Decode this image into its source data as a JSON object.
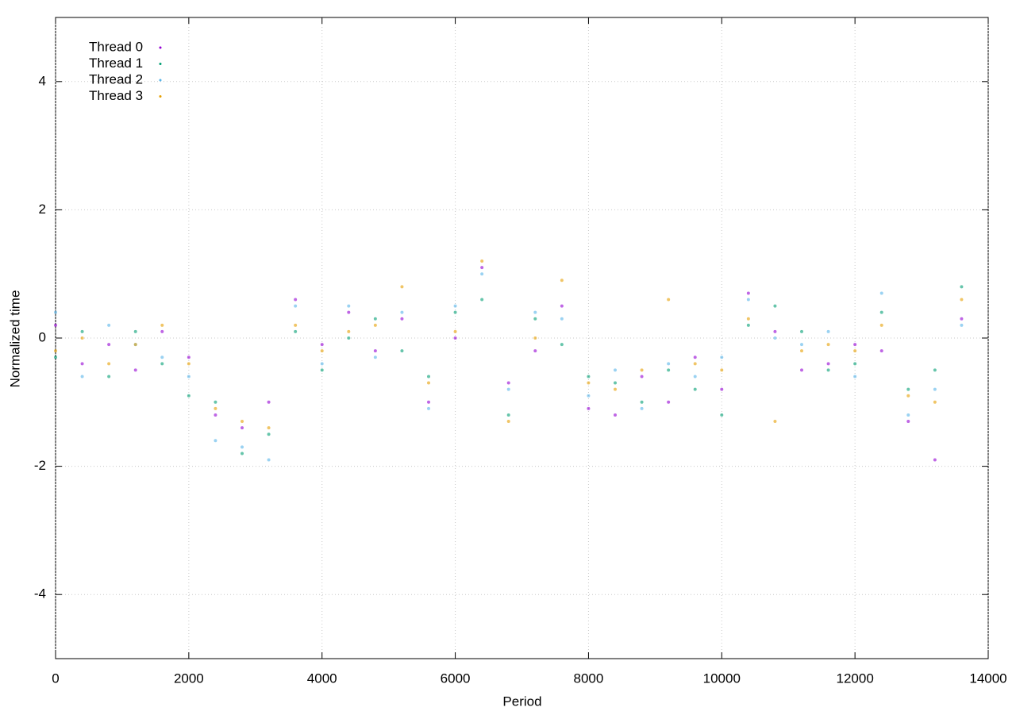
{
  "chart_data": {
    "type": "scatter",
    "xlabel": "Period",
    "ylabel": "Normalized time",
    "xlim": [
      0,
      14000
    ],
    "ylim": [
      -5,
      5
    ],
    "xticks": [
      0,
      2000,
      4000,
      6000,
      8000,
      10000,
      12000,
      14000
    ],
    "yticks": [
      -4,
      -2,
      0,
      2,
      4
    ],
    "grid": true,
    "legend": "top-left",
    "x": [
      0,
      400,
      800,
      1200,
      1600,
      2000,
      2400,
      2800,
      3200,
      3600,
      4000,
      4400,
      4800,
      5200,
      5600,
      6000,
      6400,
      6800,
      7200,
      7600,
      8000,
      8400,
      8800,
      9200,
      9600,
      10000,
      10400,
      10800,
      11200,
      11600,
      12000,
      12400,
      12800,
      13200,
      13600
    ],
    "series": [
      {
        "name": "Thread 0",
        "color": "#9400d3",
        "values": [
          0.2,
          -0.4,
          -0.1,
          -0.5,
          0.1,
          -0.3,
          -1.2,
          -1.4,
          -1.0,
          0.6,
          -0.1,
          0.4,
          -0.2,
          0.3,
          -1.0,
          0.0,
          1.1,
          -0.7,
          -0.2,
          0.5,
          -1.1,
          -1.2,
          -0.6,
          -1.0,
          -0.3,
          -0.8,
          0.7,
          0.1,
          -0.5,
          -0.4,
          -0.1,
          -0.2,
          -1.3,
          -1.9,
          0.3
        ]
      },
      {
        "name": "Thread 1",
        "color": "#009e73",
        "values": [
          -0.3,
          0.1,
          -0.6,
          0.1,
          -0.4,
          -0.9,
          -1.0,
          -1.8,
          -1.5,
          0.1,
          -0.5,
          0.0,
          0.3,
          -0.2,
          -0.6,
          0.4,
          0.6,
          -1.2,
          0.3,
          -0.1,
          -0.6,
          -0.7,
          -1.0,
          -0.5,
          -0.8,
          -1.2,
          0.2,
          0.5,
          0.1,
          -0.5,
          -0.4,
          0.4,
          -0.8,
          -0.5,
          0.8
        ]
      },
      {
        "name": "Thread 2",
        "color": "#56b4e9",
        "values": [
          0.4,
          -0.6,
          0.2,
          -0.1,
          -0.3,
          -0.6,
          -1.6,
          -1.7,
          -1.9,
          0.5,
          -0.4,
          0.5,
          -0.3,
          0.4,
          -1.1,
          0.5,
          1.0,
          -0.8,
          0.4,
          0.3,
          -0.9,
          -0.5,
          -1.1,
          -0.4,
          -0.6,
          -0.3,
          0.6,
          0.0,
          -0.1,
          0.1,
          -0.6,
          0.7,
          -1.2,
          -0.8,
          0.2
        ]
      },
      {
        "name": "Thread 3",
        "color": "#e69f00",
        "values": [
          -0.2,
          0.0,
          -0.4,
          -0.1,
          0.2,
          -0.4,
          -1.1,
          -1.3,
          -1.4,
          0.2,
          -0.2,
          0.1,
          0.2,
          0.8,
          -0.7,
          0.1,
          1.2,
          -1.3,
          0.0,
          0.9,
          -0.7,
          -0.8,
          -0.5,
          0.6,
          -0.4,
          -0.5,
          0.3,
          -1.3,
          -0.2,
          -0.1,
          -0.2,
          0.2,
          -0.9,
          -1.0,
          0.6
        ]
      }
    ]
  }
}
